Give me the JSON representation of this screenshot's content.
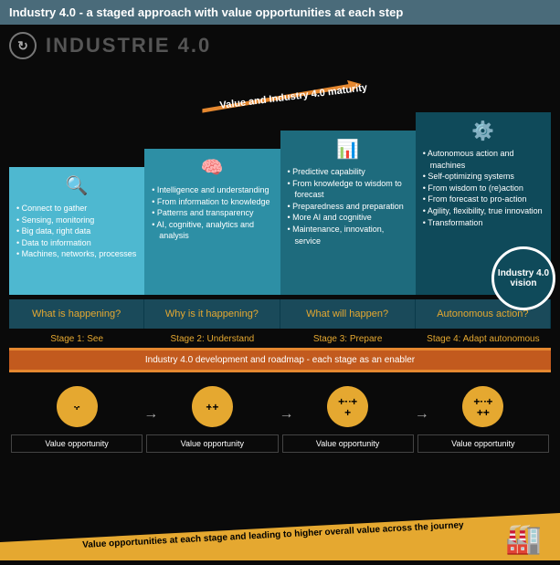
{
  "header": "Industry 4.0 - a staged approach with value opportunities at each step",
  "subtitle": "INDUSTRIE 4.0",
  "arrow_label": "Value and Industry 4.0 maturity",
  "arrow_color": "#e58830",
  "stages": [
    {
      "bg": "#4eb8d0",
      "icon": "🔍",
      "bullets": [
        "Connect to gather",
        "Sensing, monitoring",
        "Big data, right data",
        "Data to information",
        "Machines, networks, processes"
      ]
    },
    {
      "bg": "#2d8fa5",
      "icon": "🧠",
      "bullets": [
        "Intelligence and understanding",
        "From information to knowledge",
        "Patterns and transparency",
        "AI, cognitive, analytics and analysis"
      ]
    },
    {
      "bg": "#1e6b7d",
      "icon": "📊",
      "bullets": [
        "Predictive capability",
        "From knowledge to wisdom to forecast",
        "Preparedness and preparation",
        "More AI and cognitive",
        "Maintenance, innovation, service"
      ]
    },
    {
      "bg": "#0f4a5a",
      "icon": "⚙️",
      "bullets": [
        "Autonomous action and machines",
        "Self-optimizing systems",
        "From wisdom to (re)action",
        "From forecast to pro-action",
        "Agility, flexibility, true innovation",
        "Transformation"
      ]
    }
  ],
  "vision": "Industry 4.0 vision",
  "questions": [
    "What is happening?",
    "Why is it happening?",
    "What will happen?",
    "Autonomous action?"
  ],
  "stage_labels": [
    "Stage 1: See",
    "Stage 2: Understand",
    "Stage 3: Prepare",
    "Stage 4: Adapt autonomous"
  ],
  "roadmap": "Industry 4.0 development and roadmap - each stage as an enabler",
  "value_symbols": [
    "+",
    "++",
    "+++\n+",
    "+++\n++"
  ],
  "value_label": "Value opportunity",
  "bottom_text": "Value opportunities at each stage and leading to higher overall value across the journey",
  "bottom_color": "#e5a830"
}
